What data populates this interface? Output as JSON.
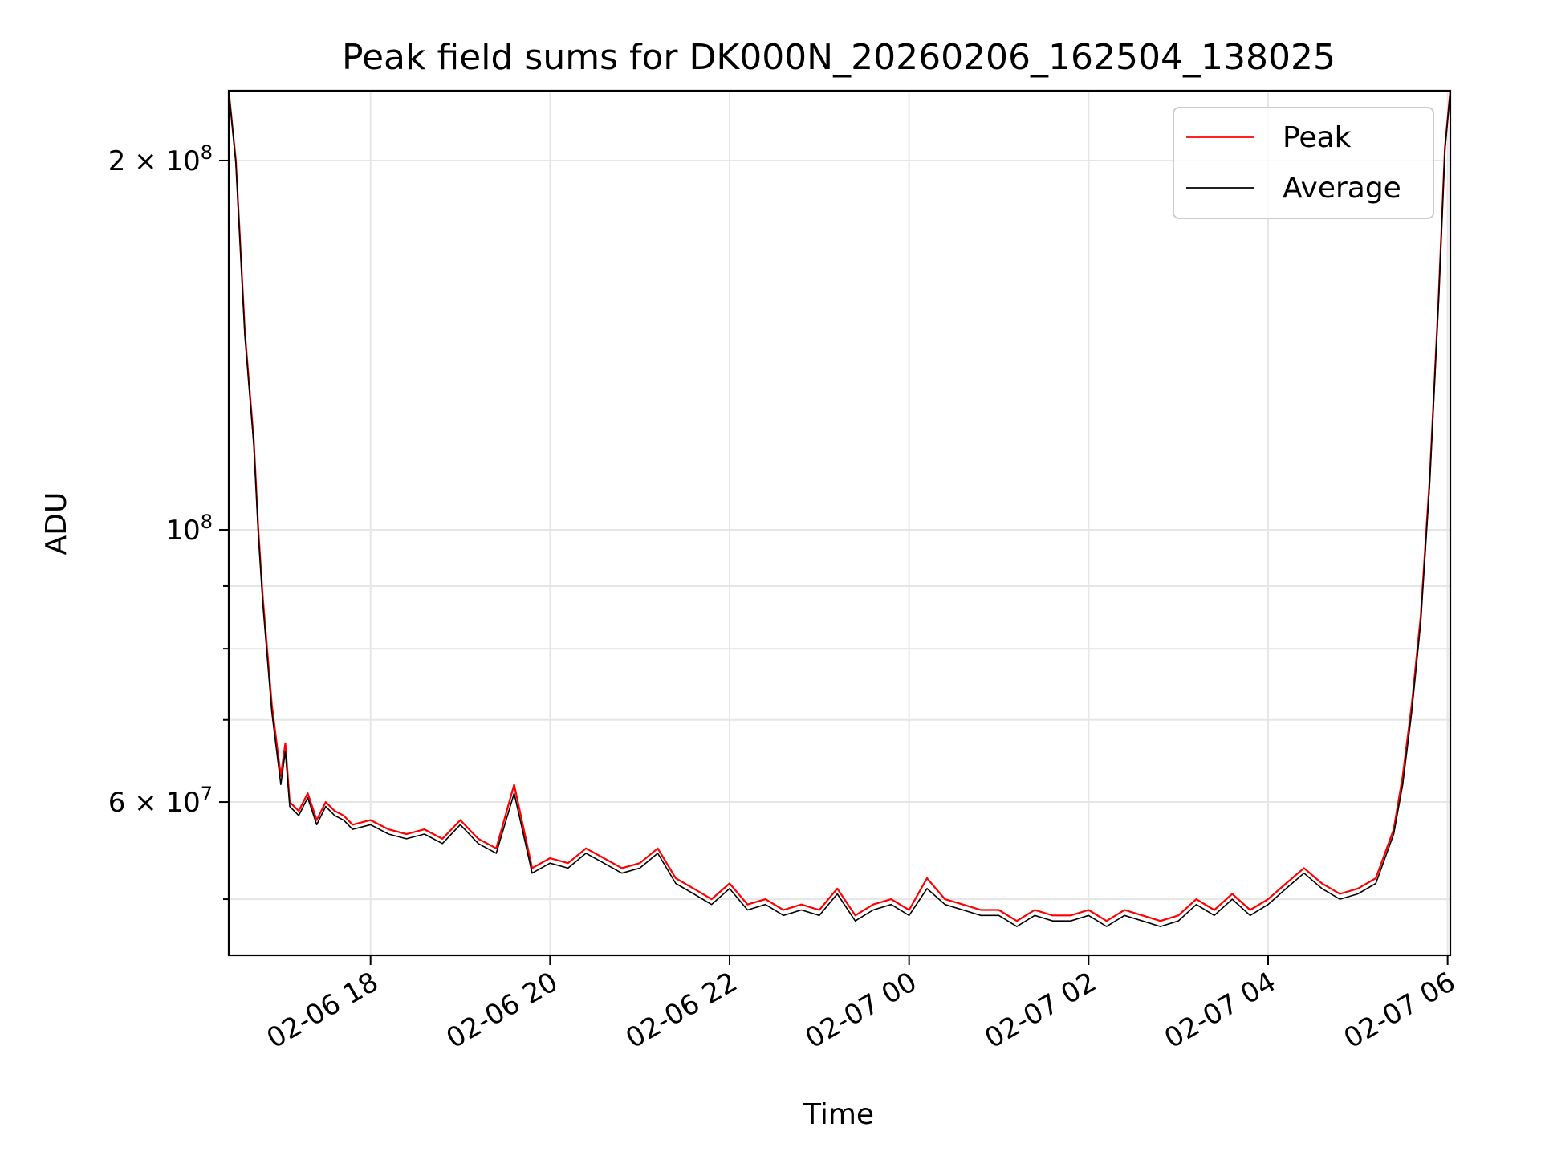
{
  "chart_data": {
    "type": "line",
    "title": "Peak field sums for DK000N_20260206_162504_138025",
    "xlabel": "Time",
    "ylabel": "ADU",
    "yscale": "log",
    "xlim_hours": [
      16.42,
      30.03
    ],
    "ylim": [
      45000000,
      228000000
    ],
    "x_ticks": [
      {
        "hours": 18,
        "label": "02-06 18"
      },
      {
        "hours": 20,
        "label": "02-06 20"
      },
      {
        "hours": 22,
        "label": "02-06 22"
      },
      {
        "hours": 24,
        "label": "02-07 00"
      },
      {
        "hours": 26,
        "label": "02-07 02"
      },
      {
        "hours": 28,
        "label": "02-07 04"
      },
      {
        "hours": 30,
        "label": "02-07 06"
      }
    ],
    "y_major_ticks": [
      {
        "value": 200000000,
        "base": "2 × 10",
        "exp": "8"
      },
      {
        "value": 100000000,
        "base": "10",
        "exp": "8"
      },
      {
        "value": 60000000,
        "base": "6 × 10",
        "exp": "7"
      }
    ],
    "y_minor_ticks": [
      90000000,
      80000000,
      70000000,
      50000000
    ],
    "legend": {
      "position": "top-right",
      "entries": [
        "Peak",
        "Average"
      ]
    },
    "series": [
      {
        "name": "Peak",
        "color": "#ff0000",
        "x_hours": [
          16.42,
          16.5,
          16.6,
          16.7,
          16.75,
          16.8,
          16.9,
          17.0,
          17.05,
          17.1,
          17.2,
          17.3,
          17.4,
          17.5,
          17.6,
          17.7,
          17.8,
          18.0,
          18.2,
          18.4,
          18.6,
          18.8,
          19.0,
          19.2,
          19.4,
          19.6,
          19.8,
          20.0,
          20.2,
          20.4,
          20.6,
          20.8,
          21.0,
          21.2,
          21.4,
          21.6,
          21.8,
          22.0,
          22.2,
          22.4,
          22.6,
          22.8,
          23.0,
          23.2,
          23.4,
          23.6,
          23.8,
          24.0,
          24.2,
          24.4,
          24.6,
          24.8,
          25.0,
          25.2,
          25.4,
          25.6,
          25.8,
          26.0,
          26.2,
          26.4,
          26.6,
          26.8,
          27.0,
          27.2,
          27.4,
          27.6,
          27.8,
          28.0,
          28.2,
          28.4,
          28.6,
          28.8,
          29.0,
          29.2,
          29.4,
          29.5,
          29.6,
          29.7,
          29.8,
          29.9,
          29.97,
          30.03
        ],
        "values": [
          228000000,
          200000000,
          145000000,
          118000000,
          100000000,
          88000000,
          72000000,
          63000000,
          67000000,
          60000000,
          59000000,
          61000000,
          58000000,
          60000000,
          59000000,
          58500000,
          57500000,
          58000000,
          57000000,
          56500000,
          57000000,
          56000000,
          58000000,
          56000000,
          55000000,
          62000000,
          53000000,
          54000000,
          53500000,
          55000000,
          54000000,
          53000000,
          53500000,
          55000000,
          52000000,
          51000000,
          50000000,
          51500000,
          49500000,
          50000000,
          49000000,
          49500000,
          49000000,
          51000000,
          48500000,
          49500000,
          50000000,
          49000000,
          52000000,
          50000000,
          49500000,
          49000000,
          49000000,
          48000000,
          49000000,
          48500000,
          48500000,
          49000000,
          48000000,
          49000000,
          48500000,
          48000000,
          48500000,
          50000000,
          49000000,
          50500000,
          49000000,
          50000000,
          51500000,
          53000000,
          51500000,
          50500000,
          51000000,
          52000000,
          57000000,
          63000000,
          72000000,
          85000000,
          110000000,
          155000000,
          205000000,
          228000000
        ]
      },
      {
        "name": "Average",
        "color": "#000000",
        "x_hours": [
          16.42,
          16.5,
          16.6,
          16.7,
          16.75,
          16.8,
          16.9,
          17.0,
          17.05,
          17.1,
          17.2,
          17.3,
          17.4,
          17.5,
          17.6,
          17.7,
          17.8,
          18.0,
          18.2,
          18.4,
          18.6,
          18.8,
          19.0,
          19.2,
          19.4,
          19.6,
          19.8,
          20.0,
          20.2,
          20.4,
          20.6,
          20.8,
          21.0,
          21.2,
          21.4,
          21.6,
          21.8,
          22.0,
          22.2,
          22.4,
          22.6,
          22.8,
          23.0,
          23.2,
          23.4,
          23.6,
          23.8,
          24.0,
          24.2,
          24.4,
          24.6,
          24.8,
          25.0,
          25.2,
          25.4,
          25.6,
          25.8,
          26.0,
          26.2,
          26.4,
          26.6,
          26.8,
          27.0,
          27.2,
          27.4,
          27.6,
          27.8,
          28.0,
          28.2,
          28.4,
          28.6,
          28.8,
          29.0,
          29.2,
          29.4,
          29.5,
          29.6,
          29.7,
          29.8,
          29.9,
          29.97,
          30.03
        ],
        "values": [
          228000000,
          199000000,
          144000000,
          117000000,
          99000000,
          87000000,
          71000000,
          62000000,
          66000000,
          59500000,
          58500000,
          60500000,
          57500000,
          59500000,
          58500000,
          58000000,
          57000000,
          57500000,
          56500000,
          56000000,
          56500000,
          55500000,
          57500000,
          55500000,
          54500000,
          61000000,
          52500000,
          53500000,
          53000000,
          54500000,
          53500000,
          52500000,
          53000000,
          54500000,
          51500000,
          50500000,
          49500000,
          51000000,
          49000000,
          49500000,
          48500000,
          49000000,
          48500000,
          50500000,
          48000000,
          49000000,
          49500000,
          48500000,
          51000000,
          49500000,
          49000000,
          48500000,
          48500000,
          47500000,
          48500000,
          48000000,
          48000000,
          48500000,
          47500000,
          48500000,
          48000000,
          47500000,
          48000000,
          49500000,
          48500000,
          50000000,
          48500000,
          49500000,
          51000000,
          52500000,
          51000000,
          50000000,
          50500000,
          51500000,
          56500000,
          62000000,
          71000000,
          84000000,
          109000000,
          154000000,
          204000000,
          228000000
        ]
      }
    ]
  }
}
